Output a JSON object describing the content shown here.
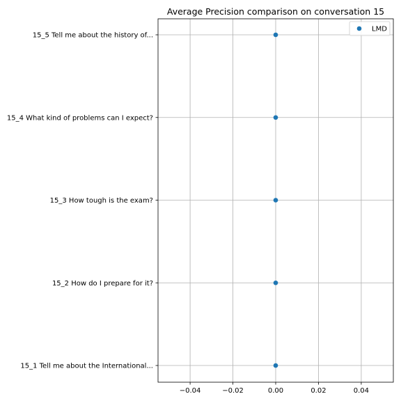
{
  "chart_data": {
    "type": "scatter",
    "title": "Average Precision comparison on conversation 15",
    "xlabel": "",
    "ylabel": "",
    "categories": [
      "15_1 Tell me about the International...",
      "15_2 How do I prepare for it?",
      "15_3 How tough is the exam?",
      "15_4 What kind of problems can I expect?",
      "15_5 Tell me about the history of..."
    ],
    "series": [
      {
        "name": "LMD",
        "color": "#1f77b4",
        "values": [
          0,
          0,
          0,
          0,
          0
        ]
      }
    ],
    "xlim": [
      -0.055,
      0.055
    ],
    "xticks": [
      -0.04,
      -0.02,
      0.0,
      0.02,
      0.04
    ],
    "xtick_labels": [
      "−0.04",
      "−0.02",
      "0.00",
      "0.02",
      "0.04"
    ],
    "grid": true,
    "legend_position": "top-right"
  }
}
